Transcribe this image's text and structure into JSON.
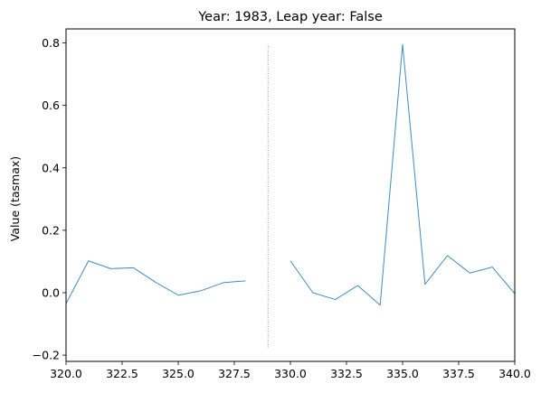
{
  "chart_data": {
    "type": "line",
    "title": "Year: 1983, Leap year: False",
    "xlabel": "",
    "ylabel": "Value (tasmax)",
    "xlim": [
      320,
      340
    ],
    "ylim": [
      -0.22,
      0.845
    ],
    "x_ticks": [
      320.0,
      322.5,
      325.0,
      327.5,
      330.0,
      332.5,
      335.0,
      337.5,
      340.0
    ],
    "x_tick_labels": [
      "320.0",
      "322.5",
      "325.0",
      "327.5",
      "330.0",
      "332.5",
      "335.0",
      "337.5",
      "340.0"
    ],
    "y_ticks": [
      -0.2,
      0.0,
      0.2,
      0.4,
      0.6,
      0.8
    ],
    "y_tick_labels": [
      "−0.2",
      "0.0",
      "0.2",
      "0.4",
      "0.6",
      "0.8"
    ],
    "grid": false,
    "line_color": "#1f77b4",
    "series": [
      {
        "segments": [
          {
            "x": [
              320,
              321,
              322,
              323,
              324,
              325,
              326,
              327,
              328
            ],
            "y": [
              -0.035,
              0.102,
              0.077,
              0.08,
              0.033,
              -0.008,
              0.006,
              0.032,
              0.038
            ]
          },
          {
            "x": [
              330,
              331,
              332,
              333,
              334,
              335,
              336,
              337,
              338,
              339,
              340
            ],
            "y": [
              0.102,
              0.0,
              -0.022,
              0.023,
              -0.04,
              0.795,
              0.027,
              0.119,
              0.063,
              0.082,
              -0.003
            ]
          }
        ]
      }
    ],
    "vline": {
      "x": 329,
      "y_range": [
        -0.175,
        0.795
      ],
      "color": "#808080",
      "style": "dotted"
    }
  }
}
